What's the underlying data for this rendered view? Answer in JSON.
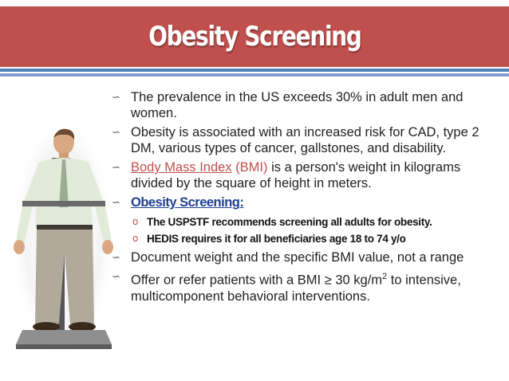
{
  "slide": {
    "title": "Obesity Screening",
    "colors": {
      "title_bar": "#c0504d",
      "stripe_dark": "#4f81bd",
      "stripe_light": "#7f9dd0",
      "highlight": "#c0504d",
      "heading_blue": "#1f3e8f"
    },
    "image": {
      "icon": "man-on-scale-photo"
    }
  },
  "bullets": {
    "b1": "The prevalence in the US exceeds 30% in adult men and women.",
    "b2": "Obesity is associated with an increased risk for CAD, type 2 DM, various types of cancer, gallstones, and disability.",
    "b3": {
      "term": "Body Mass Index",
      "abbr": "(BMI)",
      "rest": " is a person's weight in kilograms divided by the square of height in meters."
    },
    "b4": {
      "heading": "Obesity Screening",
      "colon": ":",
      "subs": [
        "The USPSTF recommends screening all adults for obesity.",
        "HEDIS requires it for all beneficiaries age 18 to 74 y/o"
      ]
    },
    "b5": "Document weight and the specific BMI value, not a range",
    "b6": {
      "pre": "Offer or refer patients with a BMI ≥ 30 kg/m",
      "sup": "2",
      "post": " to intensive, multicomponent behavioral interventions."
    }
  }
}
